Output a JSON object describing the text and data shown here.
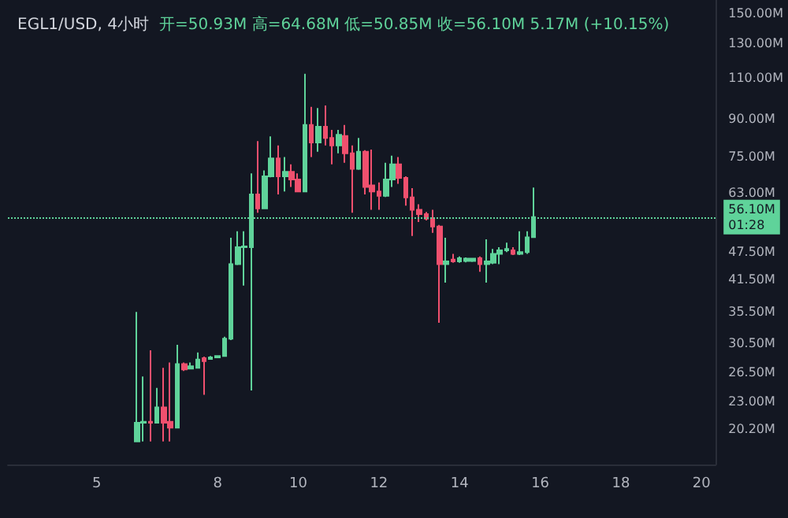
{
  "chart_data": {
    "type": "candlestick",
    "title": "EGL1/USD, 4小时",
    "subtitle": "开=50.93M 高=64.68M 低=50.85M 收=56.10M 5.17M (+10.15%)",
    "x": [
      6,
      6.17,
      6.33,
      6.5,
      6.67,
      6.83,
      7,
      7.17,
      7.33,
      7.5,
      7.67,
      7.83,
      8,
      8.17,
      8.33,
      8.5,
      8.67,
      8.83,
      9,
      9.17,
      9.33,
      9.5,
      9.67,
      9.83,
      10,
      10.17,
      10.33,
      10.5,
      10.67,
      10.83,
      11,
      11.17,
      11.33,
      11.5,
      11.67,
      11.83,
      12,
      12.17,
      12.33,
      12.5,
      12.67,
      12.83,
      13,
      13.17,
      13.33,
      13.5,
      13.67,
      13.83,
      14,
      14.17,
      14.33,
      14.5,
      14.67,
      14.83,
      15,
      15.17,
      15.33,
      15.5,
      15.67,
      15.83
    ],
    "ohlc": [
      [
        19.0,
        35.5,
        19.0,
        20.8
      ],
      [
        20.8,
        26.0,
        19.0,
        20.9
      ],
      [
        20.9,
        29.5,
        19.0,
        20.8
      ],
      [
        20.8,
        24.6,
        20.8,
        22.4
      ],
      [
        22.4,
        27.1,
        19.0,
        20.8
      ],
      [
        20.9,
        27.8,
        19.0,
        20.3
      ],
      [
        20.3,
        30.3,
        20.3,
        27.6
      ],
      [
        27.6,
        27.8,
        26.7,
        26.9
      ],
      [
        27.0,
        27.8,
        26.9,
        27.3
      ],
      [
        27.1,
        29.2,
        27.0,
        28.2
      ],
      [
        28.4,
        28.6,
        23.8,
        28.0
      ],
      [
        28.3,
        28.7,
        28.2,
        28.5
      ],
      [
        28.5,
        28.8,
        28.4,
        28.7
      ],
      [
        28.7,
        31.5,
        28.6,
        31.2
      ],
      [
        31.2,
        50.8,
        31.0,
        44.7
      ],
      [
        44.7,
        52.4,
        44.5,
        48.5
      ],
      [
        48.5,
        52.4,
        40.3,
        48.7
      ],
      [
        48.5,
        69.3,
        24.3,
        62.6
      ],
      [
        62.6,
        81.0,
        57.3,
        58.5
      ],
      [
        58.5,
        70.3,
        58.5,
        68.3
      ],
      [
        68.3,
        82.8,
        68.0,
        74.5
      ],
      [
        74.5,
        79.3,
        62.6,
        68.3
      ],
      [
        68.3,
        75.0,
        63.5,
        69.8
      ],
      [
        69.8,
        72.4,
        64.9,
        67.3
      ],
      [
        67.3,
        69.3,
        63.3,
        63.5
      ],
      [
        63.5,
        112,
        63.3,
        87.5
      ],
      [
        87.5,
        95.5,
        75.0,
        80.4
      ],
      [
        80.4,
        95.0,
        76.9,
        86.8
      ],
      [
        86.8,
        96.2,
        79.3,
        82.2
      ],
      [
        82.2,
        85.5,
        72.4,
        79.3
      ],
      [
        79.3,
        85.5,
        76.3,
        83.5
      ],
      [
        83.0,
        87.5,
        72.9,
        76.3
      ],
      [
        76.3,
        79.3,
        57.3,
        70.8
      ],
      [
        70.8,
        82.2,
        70.5,
        76.9
      ],
      [
        76.9,
        77.5,
        62.6,
        64.9
      ],
      [
        65.4,
        77.7,
        58.1,
        63.5
      ],
      [
        63.5,
        66.3,
        58.1,
        62.2
      ],
      [
        62.2,
        72.9,
        61.8,
        67.3
      ],
      [
        67.3,
        75.5,
        64.9,
        72.4
      ],
      [
        72.4,
        75.0,
        65.9,
        67.8
      ],
      [
        67.8,
        68.3,
        59.3,
        61.7
      ],
      [
        61.7,
        64.5,
        51.2,
        58.1
      ],
      [
        58.1,
        59.7,
        54.8,
        56.9
      ],
      [
        56.9,
        57.5,
        55.2,
        55.7
      ],
      [
        55.7,
        58.1,
        52.0,
        53.6
      ],
      [
        53.6,
        54.0,
        33.7,
        44.7
      ],
      [
        44.7,
        50.8,
        40.9,
        45.3
      ],
      [
        45.7,
        47.0,
        45.0,
        45.3
      ],
      [
        45.3,
        46.4,
        45.0,
        46.0
      ],
      [
        45.4,
        46.2,
        45.1,
        45.9
      ],
      [
        45.4,
        46.0,
        45.2,
        45.9
      ],
      [
        46.0,
        46.4,
        43.1,
        44.7
      ],
      [
        44.7,
        50.4,
        40.9,
        45.3
      ],
      [
        45.0,
        48.1,
        44.7,
        47.0
      ],
      [
        47.0,
        48.5,
        44.7,
        47.8
      ],
      [
        47.8,
        49.6,
        47.4,
        48.1
      ],
      [
        47.8,
        48.5,
        46.7,
        47.0
      ],
      [
        47.0,
        52.4,
        46.7,
        47.4
      ],
      [
        47.4,
        52.4,
        47.0,
        50.9
      ],
      [
        50.93,
        64.68,
        50.85,
        56.1
      ]
    ],
    "colors": [
      "#5fd39a",
      "#5fd39a",
      "#f0506e",
      "#5fd39a",
      "#f0506e",
      "#f0506e",
      "#5fd39a",
      "#f0506e",
      "#5fd39a",
      "#5fd39a",
      "#f0506e",
      "#5fd39a",
      "#5fd39a",
      "#5fd39a",
      "#5fd39a",
      "#5fd39a",
      "#5fd39a",
      "#5fd39a",
      "#f0506e",
      "#5fd39a",
      "#5fd39a",
      "#f0506e",
      "#5fd39a",
      "#f0506e",
      "#f0506e",
      "#5fd39a",
      "#f0506e",
      "#5fd39a",
      "#f0506e",
      "#f0506e",
      "#5fd39a",
      "#f0506e",
      "#f0506e",
      "#5fd39a",
      "#f0506e",
      "#f0506e",
      "#f0506e",
      "#5fd39a",
      "#5fd39a",
      "#f0506e",
      "#f0506e",
      "#f0506e",
      "#f0506e",
      "#f0506e",
      "#f0506e",
      "#f0506e",
      "#5fd39a",
      "#f0506e",
      "#5fd39a",
      "#5fd39a",
      "#5fd39a",
      "#f0506e",
      "#5fd39a",
      "#5fd39a",
      "#5fd39a",
      "#5fd39a",
      "#f0506e",
      "#5fd39a",
      "#5fd39a",
      "#5fd39a"
    ],
    "xlim": [
      2.8,
      20.35
    ],
    "xticks": [
      5,
      8,
      10,
      12,
      14,
      16,
      18,
      20
    ],
    "log": true,
    "ylim": [
      17,
      160
    ],
    "yticks": [
      {
        "value": 20.2,
        "label": "20.20M"
      },
      {
        "value": 23,
        "label": "23.00M"
      },
      {
        "value": 26.5,
        "label": "26.50M"
      },
      {
        "value": 30.5,
        "label": "30.50M"
      },
      {
        "value": 35.5,
        "label": "35.50M"
      },
      {
        "value": 41.5,
        "label": "41.50M"
      },
      {
        "value": 47.5,
        "label": "47.50M"
      },
      {
        "value": 63,
        "label": "63.00M"
      },
      {
        "value": 75,
        "label": "75.00M"
      },
      {
        "value": 90,
        "label": "90.00M"
      },
      {
        "value": 110,
        "label": "110.00M"
      },
      {
        "value": 130,
        "label": "130.00M"
      },
      {
        "value": 150,
        "label": "150.00M"
      }
    ],
    "ref_lines": [
      {
        "axis": "y",
        "value": 56.1,
        "label": "56.10M\n01:28",
        "color": "#5fd39a",
        "line_style": "dotted"
      }
    ],
    "grid": false
  }
}
